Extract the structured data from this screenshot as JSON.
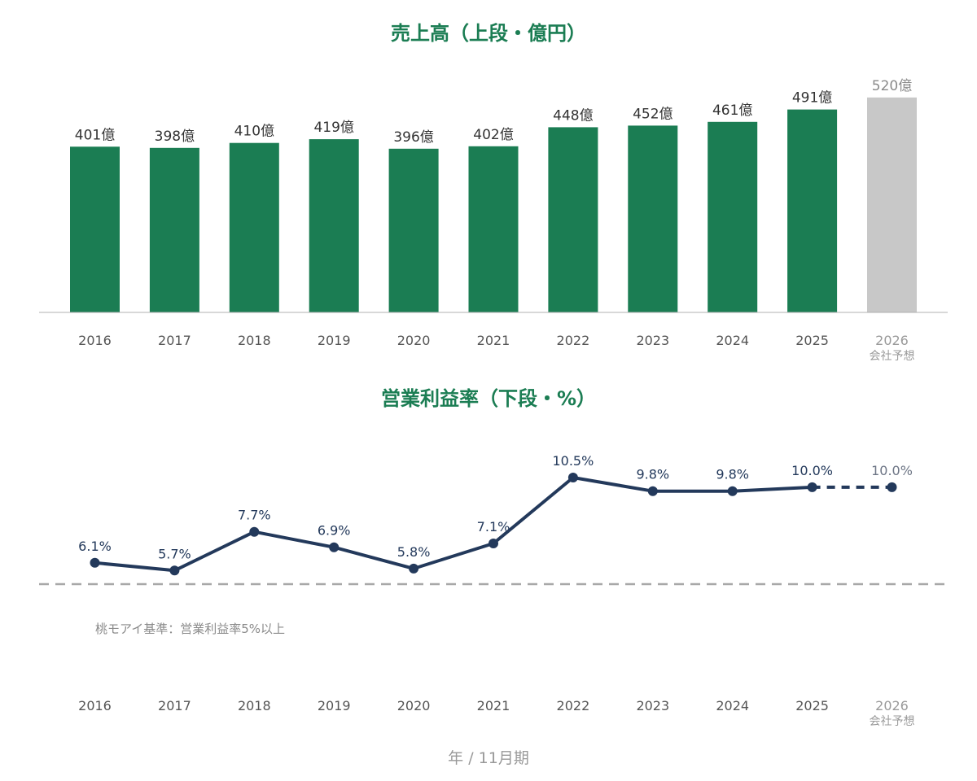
{
  "colors": {
    "title": "#1b7d53",
    "bar_actual": "#1b7d53",
    "bar_forecast": "#c8c8c8",
    "line": "#23395b",
    "threshold": "#a8a8a8",
    "axis": "#b0b0b0"
  },
  "footer": "年 / 11月期",
  "chart_data": [
    {
      "type": "bar",
      "title": "売上高（上段・億円）",
      "categories": [
        "2016",
        "2017",
        "2018",
        "2019",
        "2020",
        "2021",
        "2022",
        "2023",
        "2024",
        "2025",
        "2026"
      ],
      "category_sublabels": [
        "",
        "",
        "",
        "",
        "",
        "",
        "",
        "",
        "",
        "",
        "会社予想"
      ],
      "values": [
        401,
        398,
        410,
        419,
        396,
        402,
        448,
        452,
        461,
        491,
        520
      ],
      "value_labels": [
        "401億",
        "398億",
        "410億",
        "419億",
        "396億",
        "402億",
        "448億",
        "452億",
        "461億",
        "491億",
        "520億"
      ],
      "forecast": [
        false,
        false,
        false,
        false,
        false,
        false,
        false,
        false,
        false,
        false,
        true
      ],
      "ylim": [
        0,
        520
      ],
      "grid": false
    },
    {
      "type": "line",
      "title": "営業利益率（下段・%）",
      "categories": [
        "2016",
        "2017",
        "2018",
        "2019",
        "2020",
        "2021",
        "2022",
        "2023",
        "2024",
        "2025",
        "2026"
      ],
      "category_sublabels": [
        "",
        "",
        "",
        "",
        "",
        "",
        "",
        "",
        "",
        "",
        "会社予想"
      ],
      "values": [
        6.1,
        5.7,
        7.7,
        6.9,
        5.8,
        7.1,
        10.5,
        9.8,
        9.8,
        10.0,
        10.0
      ],
      "value_labels": [
        "6.1%",
        "5.7%",
        "7.7%",
        "6.9%",
        "5.8%",
        "7.1%",
        "10.5%",
        "9.8%",
        "9.8%",
        "10.0%",
        "10.0%"
      ],
      "forecast": [
        false,
        false,
        false,
        false,
        false,
        false,
        false,
        false,
        false,
        false,
        true
      ],
      "threshold": {
        "value": 5,
        "label": "桃モアイ基準：営業利益率5%以上"
      },
      "grid": false
    }
  ]
}
